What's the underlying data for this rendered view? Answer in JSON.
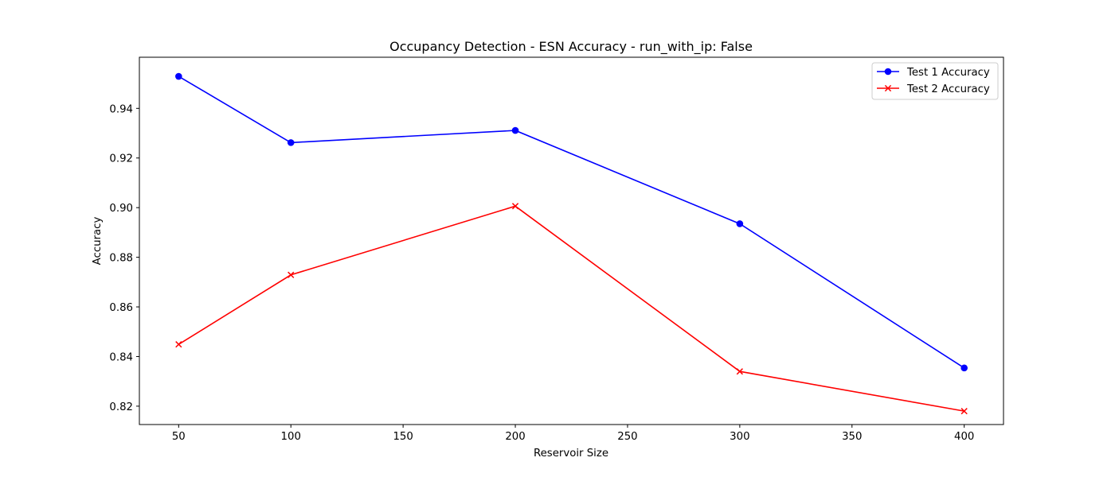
{
  "chart_data": {
    "type": "line",
    "title": "Occupancy Detection - ESN Accuracy - run_with_ip: False",
    "xlabel": "Reservoir Size",
    "ylabel": "Accuracy",
    "x": [
      50,
      100,
      200,
      300,
      400
    ],
    "xlim": [
      32.5,
      417.5
    ],
    "ylim": [
      0.8126,
      0.9606
    ],
    "xticks": [
      50,
      100,
      150,
      200,
      250,
      300,
      350,
      400
    ],
    "yticks": [
      0.82,
      0.84,
      0.86,
      0.88,
      0.9,
      0.92,
      0.94
    ],
    "ytick_labels": [
      "0.82",
      "0.84",
      "0.86",
      "0.88",
      "0.90",
      "0.92",
      "0.94"
    ],
    "grid": false,
    "legend_position": "upper right",
    "series": [
      {
        "name": "Test 1 Accuracy",
        "color": "#0000ff",
        "marker": "circle",
        "values": [
          0.9529,
          0.9262,
          0.9311,
          0.8935,
          0.8354
        ]
      },
      {
        "name": "Test 2 Accuracy",
        "color": "#ff0000",
        "marker": "x",
        "values": [
          0.8449,
          0.8729,
          0.9006,
          0.834,
          0.818
        ]
      }
    ]
  }
}
